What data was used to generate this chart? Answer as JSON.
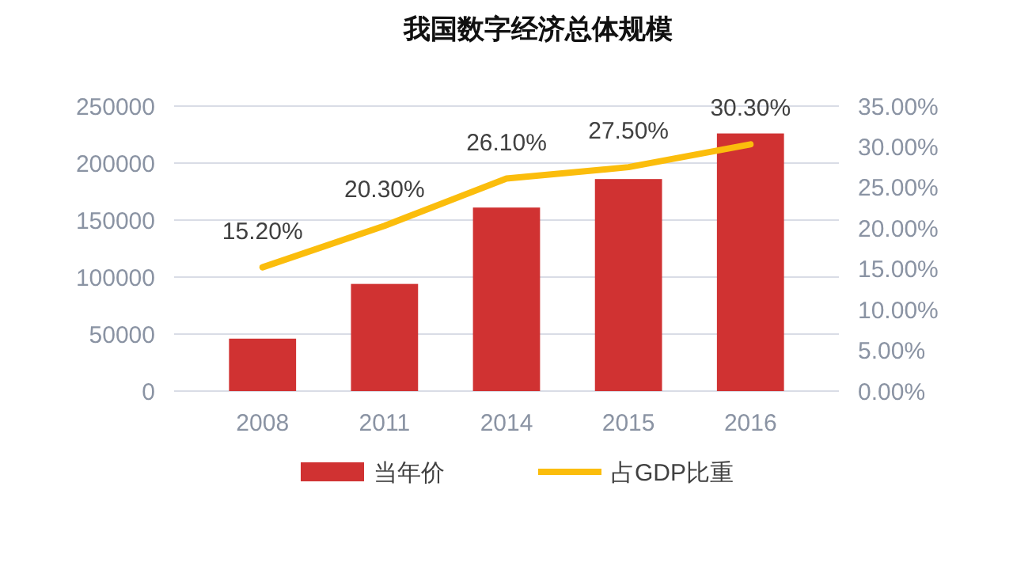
{
  "chart_data": {
    "type": "bar",
    "title": "我国数字经济总体规模",
    "categories": [
      "2008",
      "2011",
      "2014",
      "2015",
      "2016"
    ],
    "series": [
      {
        "name": "当年价",
        "color": "#d03232",
        "values": [
          46000,
          94000,
          161000,
          186000,
          226000
        ]
      },
      {
        "name": "占GDP比重",
        "type": "line",
        "axis": "y2",
        "color": "#fbbd0c",
        "values": [
          15.2,
          20.3,
          26.1,
          27.5,
          30.3
        ],
        "value_labels": [
          "15.20%",
          "20.30%",
          "26.10%",
          "27.50%",
          "30.30%"
        ]
      }
    ],
    "ylim": [
      0,
      250000
    ],
    "yticks": [
      0,
      50000,
      100000,
      150000,
      200000,
      250000
    ],
    "y2lim": [
      0,
      35
    ],
    "y2ticks": [
      {
        "value": 0,
        "label": "0.00%"
      },
      {
        "value": 5,
        "label": "5.00%"
      },
      {
        "value": 10,
        "label": "10.00%"
      },
      {
        "value": 15,
        "label": "15.00%"
      },
      {
        "value": 20,
        "label": "20.00%"
      },
      {
        "value": 25,
        "label": "25.00%"
      },
      {
        "value": 30,
        "label": "30.00%"
      },
      {
        "value": 35,
        "label": "35.00%"
      }
    ],
    "grid": "y",
    "legend": "bottom",
    "marker": "none",
    "line_style": "solid"
  }
}
